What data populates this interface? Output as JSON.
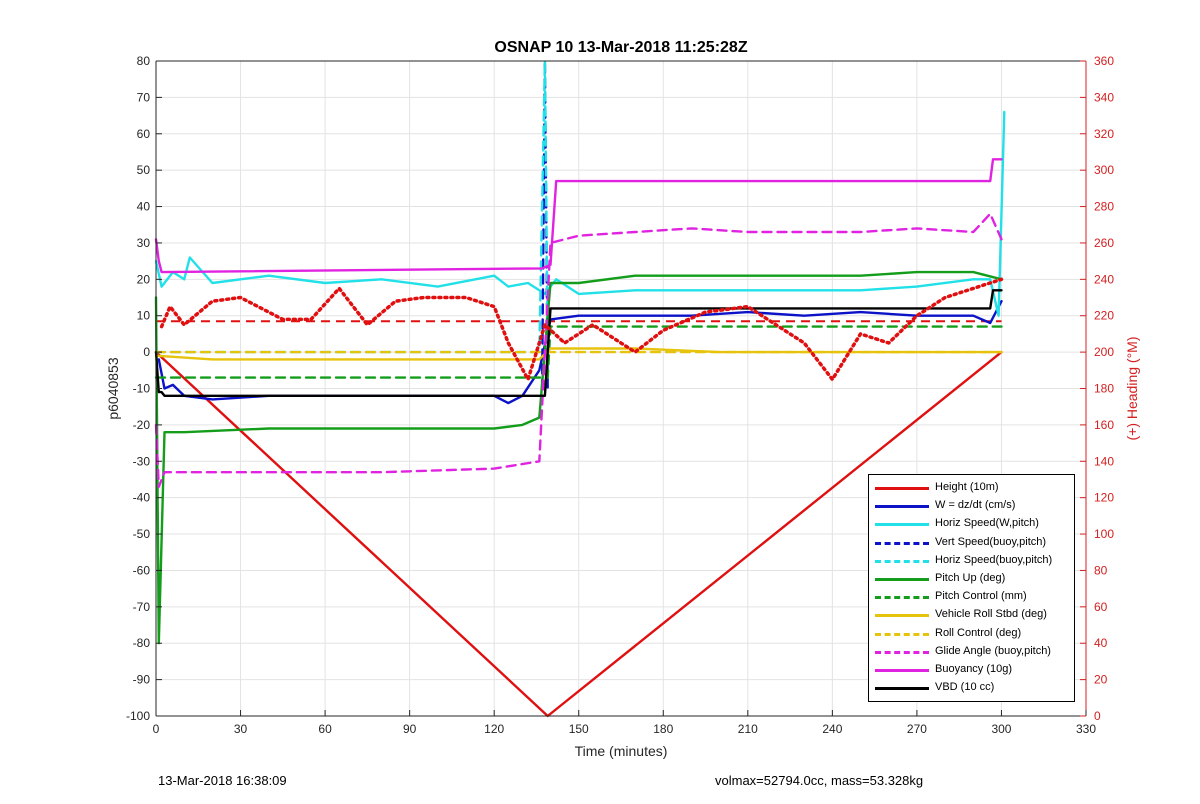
{
  "chart_data": {
    "type": "line",
    "title": "OSNAP 10 13-Mar-2018 11:25:28Z",
    "xlabel": "Time (minutes)",
    "ylabel": "p6040853",
    "ylabel_right": "(+) Heading (°M)",
    "xlim": [
      0,
      330
    ],
    "ylim": [
      -100,
      80
    ],
    "ylim_right": [
      0,
      360
    ],
    "x_ticks": [
      "0",
      "30",
      "60",
      "90",
      "120",
      "150",
      "180",
      "210",
      "240",
      "270",
      "300",
      "330"
    ],
    "y_ticks": [
      "-100",
      "-90",
      "-80",
      "-70",
      "-60",
      "-50",
      "-40",
      "-30",
      "-20",
      "-10",
      "0",
      "10",
      "20",
      "30",
      "40",
      "50",
      "60",
      "70",
      "80"
    ],
    "y_ticks_right": [
      "0",
      "20",
      "40",
      "60",
      "80",
      "100",
      "120",
      "140",
      "160",
      "180",
      "200",
      "220",
      "240",
      "260",
      "280",
      "300",
      "320",
      "340",
      "360"
    ],
    "grid": true,
    "legend_position": "bottom-right",
    "series": [
      {
        "name": "Height (10m)",
        "color": "#e01010",
        "style": "solid",
        "x": [
          0,
          139,
          300
        ],
        "values": [
          0,
          -100,
          0
        ]
      },
      {
        "name": "W = dz/dt (cm/s)",
        "color": "#0b12c8",
        "style": "solid",
        "x": [
          1,
          3,
          6,
          10,
          20,
          40,
          60,
          80,
          100,
          120,
          125,
          130,
          136,
          140,
          150,
          170,
          190,
          210,
          230,
          250,
          270,
          290,
          296,
          300
        ],
        "values": [
          -2,
          -10,
          -9,
          -12,
          -13,
          -12,
          -12,
          -12,
          -12,
          -12,
          -14,
          -12,
          -5,
          9,
          10,
          10,
          10,
          11,
          10,
          11,
          10,
          10,
          8,
          14
        ]
      },
      {
        "name": "Horiz Speed(W,pitch)",
        "color": "#22e0e8",
        "style": "solid",
        "x": [
          0,
          2,
          6,
          10,
          12,
          20,
          40,
          60,
          80,
          100,
          120,
          125,
          132,
          138,
          142,
          150,
          170,
          190,
          210,
          230,
          250,
          270,
          290,
          296,
          299,
          301
        ],
        "values": [
          25,
          18,
          22,
          20,
          26,
          19,
          21,
          19,
          20,
          18,
          21,
          18,
          19,
          16,
          20,
          16,
          17,
          17,
          17,
          17,
          17,
          18,
          20,
          20,
          10,
          66
        ]
      },
      {
        "name": "Vert Speed(buoy,pitch)",
        "color": "#0b12c8",
        "style": "dashed",
        "x": [
          137,
          138,
          139
        ],
        "values": [
          -10,
          80,
          -10
        ]
      },
      {
        "name": "Horiz Speed(buoy,pitch)",
        "color": "#22e0e8",
        "style": "dashed",
        "x": [
          0,
          136,
          138,
          139,
          140
        ],
        "values": [
          0,
          0,
          80,
          0,
          0
        ]
      },
      {
        "name": "Pitch Up (deg)",
        "color": "#139d1a",
        "style": "solid",
        "x": [
          0,
          1,
          3,
          10,
          40,
          60,
          80,
          100,
          120,
          130,
          136,
          140,
          150,
          170,
          190,
          210,
          230,
          250,
          270,
          290,
          300
        ],
        "values": [
          15,
          -80,
          -22,
          -22,
          -21,
          -21,
          -21,
          -21,
          -21,
          -20,
          -18,
          19,
          19,
          21,
          21,
          21,
          21,
          21,
          22,
          22,
          20
        ]
      },
      {
        "name": "Pitch Control (mm)",
        "color": "#139d1a",
        "style": "dashed",
        "x": [
          0,
          139,
          140,
          300
        ],
        "values": [
          -7,
          -7,
          7,
          7
        ]
      },
      {
        "name": "Vehicle Roll Stbd (deg)",
        "color": "#e6c40e",
        "style": "solid",
        "x": [
          0,
          20,
          40,
          60,
          80,
          100,
          120,
          136,
          140,
          170,
          200,
          230,
          260,
          300
        ],
        "values": [
          -1,
          -2,
          -2,
          -2,
          -2,
          -2,
          -2,
          -2,
          1,
          1,
          0,
          0,
          0,
          0
        ]
      },
      {
        "name": "Roll Control (deg)",
        "color": "#e6c40e",
        "style": "dashed",
        "x": [
          0,
          136,
          140,
          300
        ],
        "values": [
          0,
          0,
          0,
          0
        ]
      },
      {
        "name": "Glide Angle (buoy,pitch)",
        "color": "#e023e0",
        "style": "dashed",
        "x": [
          0,
          1,
          3,
          10,
          40,
          80,
          120,
          136,
          140,
          150,
          170,
          190,
          210,
          230,
          250,
          270,
          290,
          296,
          300
        ],
        "values": [
          -20,
          -37,
          -33,
          -33,
          -33,
          -33,
          -32,
          -30,
          30,
          32,
          33,
          34,
          33,
          33,
          33,
          34,
          33,
          38,
          31
        ]
      },
      {
        "name": "Buoyancy (10g)",
        "color": "#e023e0",
        "style": "solid",
        "x": [
          0,
          1,
          2,
          137,
          140,
          142,
          170,
          250,
          290,
          296,
          297,
          300
        ],
        "values": [
          31,
          25,
          22,
          23,
          24,
          47,
          47,
          47,
          47,
          47,
          53,
          53
        ]
      },
      {
        "name": "VBD (10 cc)",
        "color": "#000000",
        "style": "solid",
        "x": [
          0,
          1,
          2,
          3,
          136,
          137,
          138,
          140,
          296,
          297,
          300
        ],
        "values": [
          0,
          -11,
          -11,
          -12,
          -12,
          -12,
          -12,
          12,
          12,
          17,
          17
        ]
      },
      {
        "name": "Heading",
        "color": "#e01010",
        "style": "dotted",
        "axis": "right",
        "x": [
          2,
          5,
          10,
          20,
          30,
          40,
          45,
          55,
          65,
          75,
          85,
          95,
          110,
          120,
          125,
          132,
          138,
          145,
          155,
          170,
          180,
          195,
          210,
          230,
          240,
          250,
          260,
          270,
          280,
          290,
          300
        ],
        "values": [
          214,
          225,
          215,
          228,
          230,
          222,
          218,
          218,
          235,
          215,
          228,
          230,
          230,
          225,
          205,
          185,
          215,
          205,
          215,
          200,
          212,
          222,
          225,
          205,
          185,
          210,
          205,
          220,
          230,
          235,
          240
        ]
      }
    ],
    "markers_note": "",
    "reference_lines": [
      {
        "color": "#e01010",
        "style": "dashed",
        "axis": "right",
        "x": [
          0,
          300
        ],
        "values": [
          217,
          217
        ]
      }
    ]
  },
  "footer": {
    "timestamp": "13-Mar-2018 16:38:09",
    "info": "volmax=52794.0cc, mass=53.328kg"
  }
}
